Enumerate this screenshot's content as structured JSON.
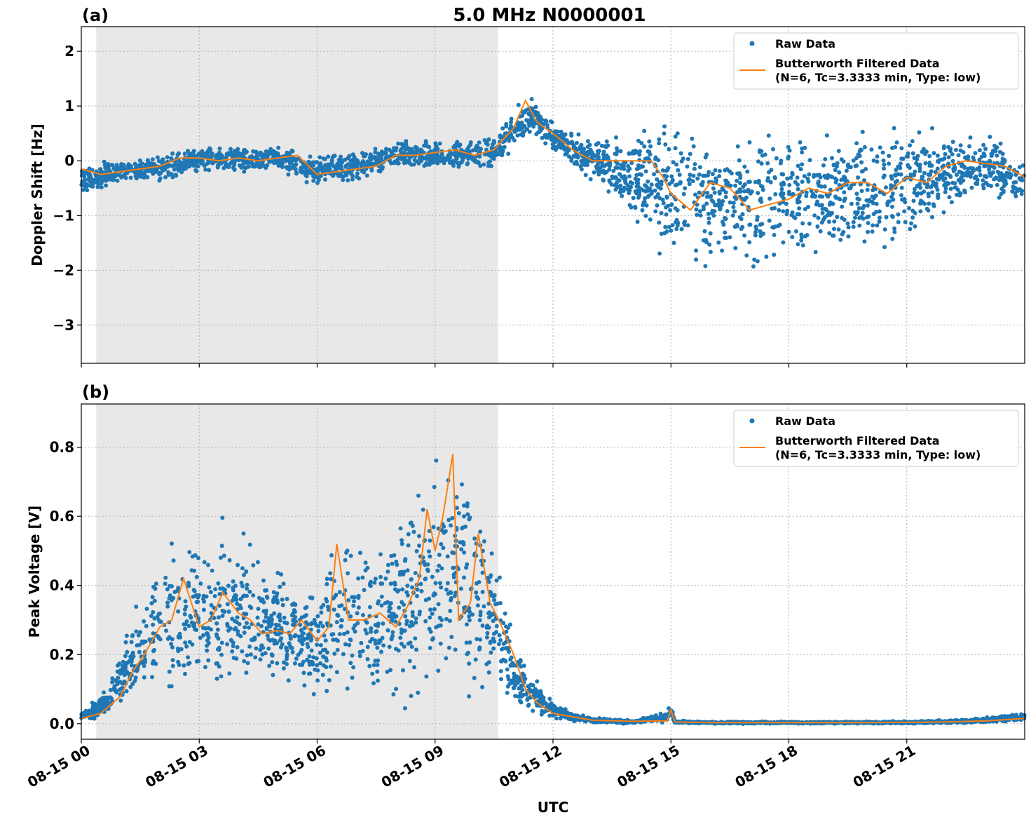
{
  "figure": {
    "title": "5.0 MHz N0000001",
    "xlabel": "UTC"
  },
  "colors": {
    "raw": "#1f77b4",
    "filtered": "#ff7f0e",
    "shade": "#e8e8e8",
    "grid": "#b0b0b0"
  },
  "chart_data": [
    {
      "type": "scatter",
      "panel_label": "(a)",
      "ylabel": "Doppler Shift [Hz]",
      "x_tick_labels": [
        "08-15 00",
        "08-15 03",
        "08-15 06",
        "08-15 09",
        "08-15 12",
        "08-15 15",
        "08-15 18",
        "08-15 21"
      ],
      "x_ticks_hours": [
        0,
        3,
        6,
        9,
        12,
        15,
        18,
        21
      ],
      "xlim_hours": [
        0,
        24
      ],
      "yticks": [
        2,
        1,
        0,
        -1,
        -2,
        -3
      ],
      "ytick_labels": [
        "2",
        "1",
        "0",
        "−1",
        "−2",
        "−3"
      ],
      "ylim": [
        -3.7,
        2.45
      ],
      "grid": true,
      "shaded_span_hours": [
        0.38,
        10.6
      ],
      "legend_position": "upper-right",
      "legend": [
        "Raw Data",
        "Butterworth Filtered Data",
        "(N=6, Tc=3.3333 min, Type: low)"
      ],
      "series": [
        {
          "name": "Raw Data",
          "style": "points",
          "x_hours": [
            0,
            1,
            2,
            3,
            4,
            5,
            6,
            7,
            8,
            9,
            10,
            10.6,
            11,
            11.5,
            12,
            12.5,
            13,
            13.5,
            14,
            14.5,
            14.8,
            15,
            16,
            17,
            18,
            19,
            20,
            21,
            22,
            23,
            24
          ],
          "center": [
            -0.35,
            -0.2,
            -0.15,
            0.05,
            0.0,
            0.05,
            -0.2,
            -0.1,
            0.1,
            0.1,
            0.1,
            0.2,
            0.6,
            0.8,
            0.4,
            0.2,
            0.05,
            -0.1,
            -0.3,
            -0.4,
            -0.5,
            -0.6,
            -0.7,
            -0.8,
            -0.6,
            -0.55,
            -0.5,
            -0.4,
            -0.2,
            -0.1,
            -0.4
          ],
          "spread": [
            0.35,
            0.3,
            0.3,
            0.3,
            0.3,
            0.3,
            0.35,
            0.35,
            0.3,
            0.35,
            0.35,
            0.4,
            0.45,
            0.45,
            0.35,
            0.35,
            0.5,
            0.7,
            1.0,
            1.4,
            1.5,
            1.6,
            1.5,
            1.6,
            1.5,
            1.4,
            1.4,
            1.3,
            1.0,
            0.8,
            0.5
          ]
        },
        {
          "name": "Butterworth Filtered Data",
          "style": "line",
          "x_hours": [
            0,
            0.5,
            1,
            1.5,
            2,
            2.5,
            3,
            3.5,
            4,
            4.5,
            5,
            5.5,
            6,
            6.5,
            7,
            7.5,
            8,
            8.5,
            9,
            9.5,
            10,
            10.5,
            11,
            11.3,
            11.6,
            12,
            12.5,
            13,
            13.5,
            14,
            14.5,
            14.8,
            15,
            15.5,
            16,
            16.5,
            17,
            17.5,
            18,
            18.5,
            19,
            19.5,
            20,
            20.5,
            21,
            21.5,
            22,
            22.5,
            23,
            23.5,
            24
          ],
          "values": [
            -0.15,
            -0.25,
            -0.2,
            -0.15,
            -0.1,
            0.05,
            0.05,
            0.0,
            0.05,
            0.0,
            0.05,
            0.1,
            -0.25,
            -0.2,
            -0.15,
            -0.1,
            0.1,
            0.1,
            0.15,
            0.2,
            0.1,
            0.2,
            0.6,
            1.1,
            0.7,
            0.5,
            0.2,
            0.0,
            0.0,
            0.0,
            0.0,
            -0.3,
            -0.6,
            -0.9,
            -0.4,
            -0.5,
            -0.9,
            -0.8,
            -0.7,
            -0.5,
            -0.6,
            -0.4,
            -0.4,
            -0.6,
            -0.3,
            -0.4,
            -0.1,
            0.0,
            -0.05,
            -0.1,
            -0.3
          ]
        }
      ]
    },
    {
      "type": "scatter",
      "panel_label": "(b)",
      "ylabel": "Peak Voltage [V]",
      "x_tick_labels": [
        "08-15 00",
        "08-15 03",
        "08-15 06",
        "08-15 09",
        "08-15 12",
        "08-15 15",
        "08-15 18",
        "08-15 21"
      ],
      "x_ticks_hours": [
        0,
        3,
        6,
        9,
        12,
        15,
        18,
        21
      ],
      "xlim_hours": [
        0,
        24
      ],
      "yticks": [
        0.0,
        0.2,
        0.4,
        0.6,
        0.8
      ],
      "ytick_labels": [
        "0.0",
        "0.2",
        "0.4",
        "0.6",
        "0.8"
      ],
      "ylim": [
        -0.045,
        0.925
      ],
      "grid": true,
      "shaded_span_hours": [
        0.38,
        10.6
      ],
      "legend_position": "upper-right",
      "legend": [
        "Raw Data",
        "Butterworth Filtered Data",
        "(N=6, Tc=3.3333 min, Type: low)"
      ],
      "series": [
        {
          "name": "Raw Data",
          "style": "points",
          "x_hours": [
            0,
            0.5,
            1,
            1.5,
            2,
            2.5,
            3,
            3.5,
            4,
            4.5,
            5,
            5.5,
            6,
            6.5,
            7,
            7.5,
            8,
            8.5,
            9,
            9.5,
            10,
            10.5,
            11,
            11.5,
            12,
            12.5,
            13,
            14,
            14.9,
            15,
            15.1,
            16,
            18,
            20,
            22,
            23,
            24
          ],
          "center": [
            0.02,
            0.05,
            0.12,
            0.22,
            0.3,
            0.3,
            0.3,
            0.32,
            0.32,
            0.3,
            0.28,
            0.25,
            0.22,
            0.3,
            0.32,
            0.3,
            0.33,
            0.38,
            0.45,
            0.5,
            0.38,
            0.32,
            0.15,
            0.08,
            0.04,
            0.02,
            0.01,
            0.005,
            0.02,
            0.04,
            0.005,
            0.003,
            0.003,
            0.003,
            0.005,
            0.01,
            0.02
          ],
          "spread": [
            0.015,
            0.04,
            0.1,
            0.18,
            0.25,
            0.3,
            0.3,
            0.3,
            0.3,
            0.25,
            0.22,
            0.2,
            0.2,
            0.3,
            0.3,
            0.3,
            0.32,
            0.38,
            0.42,
            0.42,
            0.38,
            0.25,
            0.12,
            0.06,
            0.03,
            0.015,
            0.01,
            0.006,
            0.02,
            0.03,
            0.005,
            0.004,
            0.004,
            0.004,
            0.006,
            0.01,
            0.015
          ]
        },
        {
          "name": "Butterworth Filtered Data",
          "style": "line",
          "x_hours": [
            0,
            0.5,
            1,
            1.3,
            1.6,
            2,
            2.3,
            2.6,
            3,
            3.3,
            3.6,
            4,
            4.3,
            4.6,
            5,
            5.3,
            5.6,
            6,
            6.3,
            6.5,
            6.8,
            7.2,
            7.6,
            8,
            8.3,
            8.6,
            8.8,
            9,
            9.2,
            9.45,
            9.6,
            9.9,
            10.1,
            10.4,
            10.7,
            11,
            11.3,
            11.6,
            12,
            12.5,
            13,
            14,
            14.9,
            15,
            15.1,
            16,
            18,
            20,
            22,
            23,
            24
          ],
          "values": [
            0.015,
            0.03,
            0.08,
            0.15,
            0.2,
            0.28,
            0.3,
            0.42,
            0.28,
            0.3,
            0.38,
            0.32,
            0.3,
            0.26,
            0.27,
            0.26,
            0.3,
            0.24,
            0.28,
            0.52,
            0.3,
            0.3,
            0.32,
            0.28,
            0.34,
            0.42,
            0.62,
            0.5,
            0.6,
            0.78,
            0.3,
            0.35,
            0.55,
            0.35,
            0.28,
            0.2,
            0.1,
            0.06,
            0.03,
            0.02,
            0.01,
            0.007,
            0.008,
            0.04,
            0.005,
            0.003,
            0.003,
            0.003,
            0.005,
            0.008,
            0.015
          ]
        }
      ]
    }
  ]
}
